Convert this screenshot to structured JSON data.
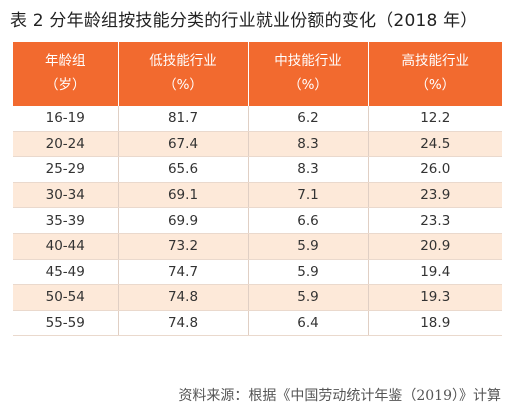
{
  "title": "表 2 分年龄组按技能分类的行业就业份额的变化（2018 年）",
  "table": {
    "header_row1": [
      "年龄组",
      "低技能行业",
      "中技能行业",
      "高技能行业"
    ],
    "header_row2": [
      "（岁）",
      "（%）",
      "（%）",
      "（%）"
    ],
    "rows": [
      [
        "16-19",
        "81.7",
        "6.2",
        "12.2"
      ],
      [
        "20-24",
        "67.4",
        "8.3",
        "24.5"
      ],
      [
        "25-29",
        "65.6",
        "8.3",
        "26.0"
      ],
      [
        "30-34",
        "69.1",
        "7.1",
        "23.9"
      ],
      [
        "35-39",
        "69.9",
        "6.6",
        "23.3"
      ],
      [
        "40-44",
        "73.2",
        "5.9",
        "20.9"
      ],
      [
        "45-49",
        "74.7",
        "5.9",
        "19.4"
      ],
      [
        "50-54",
        "74.8",
        "5.9",
        "19.3"
      ],
      [
        "55-59",
        "74.8",
        "6.4",
        "18.9"
      ]
    ]
  },
  "source": "资料来源：根据《中国劳动统计年鉴（2019）》计算",
  "colors": {
    "header_bg": "#f26a2f",
    "stripe": "#fde9d9"
  }
}
